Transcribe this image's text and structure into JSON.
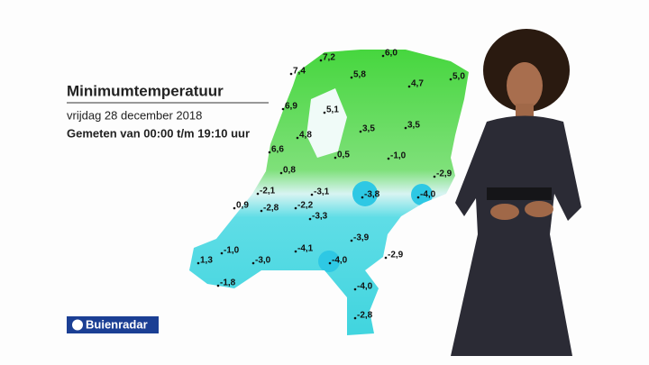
{
  "header": {
    "title": "Minimumtemperatuur",
    "date": "vrijdag 28 december 2018",
    "subtitle": "Gemeten van 00:00 t/m 19:10 uur"
  },
  "map": {
    "labels": [
      "7,2",
      "6,0",
      "7,4",
      "5,8",
      "5,0",
      "4,7",
      "6,9",
      "5,1",
      "4,8",
      "3,5",
      "3,5",
      "6,6",
      "0,8",
      "0,5",
      "-1,0",
      "-2,9",
      "-2,1",
      "-3,1",
      "-3,8",
      "-4,0",
      "0,9",
      "-2,8",
      "-2,2",
      "-3,3",
      "-1,0",
      "-4,1",
      "-3,9",
      "1,3",
      "-3,0",
      "-4,0",
      "-2,9",
      "-1,8",
      "-4,0",
      "-2,8"
    ]
  },
  "logo": {
    "text": "Buienradar"
  }
}
